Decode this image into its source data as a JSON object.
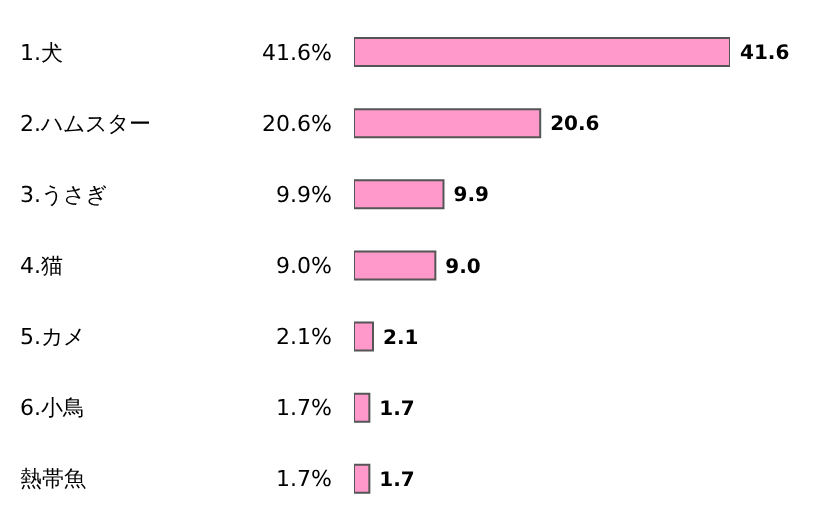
{
  "chart_data": {
    "type": "bar",
    "orientation": "horizontal",
    "categories": [
      "1.犬",
      "2.ハムスター",
      "3.うさぎ",
      "4.猫",
      "5.カメ",
      "6.小鳥",
      "熱帯魚"
    ],
    "values": [
      41.6,
      20.6,
      9.9,
      9.0,
      2.1,
      1.7,
      1.7
    ],
    "value_labels": [
      "41.6",
      "20.6",
      "9.9",
      "9.0",
      "2.1",
      "1.7",
      "1.7"
    ],
    "color": "#ff99cc",
    "annotations": [
      "41.6%",
      "20.6%",
      "9.9%",
      "9.0%",
      "2.1%",
      "1.7%",
      "1.7%"
    ]
  }
}
